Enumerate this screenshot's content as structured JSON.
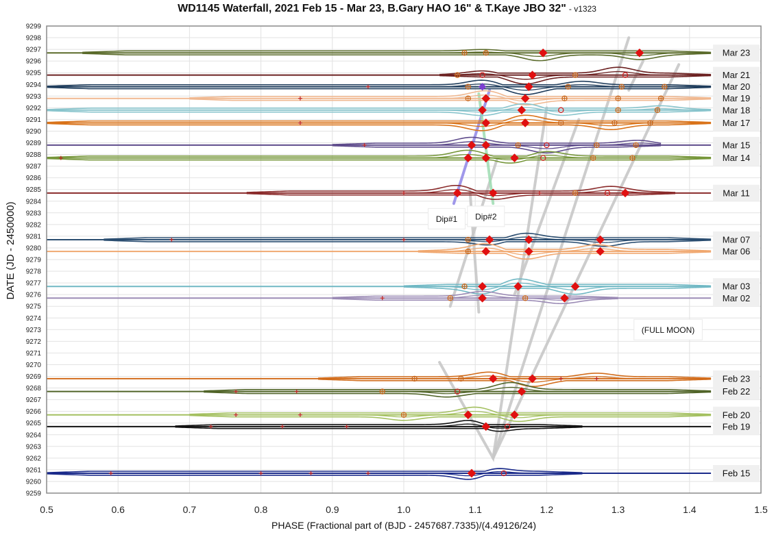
{
  "chart_data": {
    "type": "line",
    "title": "WD1145 Waterfall, 2021 Feb 15 - Mar 23, B.Gary HAO 16\" & T.Kaye JBO 32\"",
    "version": "- v1323",
    "xlabel": "PHASE (Fractional part of (BJD - 2457687.7335)/(4.49126/24)",
    "ylabel": "DATE (JD - 2450000)",
    "xlim": [
      0.5,
      1.5
    ],
    "ylim": [
      9259,
      9299
    ],
    "xticks": [
      "0.5",
      "0.6",
      "0.7",
      "0.8",
      "0.9",
      "1.0",
      "1.1",
      "1.2",
      "1.3",
      "1.4",
      "1.5"
    ],
    "yticks": [
      "9259",
      "9260",
      "9261",
      "9262",
      "9263",
      "9264",
      "9265",
      "9266",
      "9267",
      "9268",
      "9269",
      "9270",
      "9271",
      "9272",
      "9273",
      "9274",
      "9275",
      "9276",
      "9277",
      "9278",
      "9279",
      "9280",
      "9281",
      "9282",
      "9283",
      "9284",
      "9285",
      "9286",
      "9287",
      "9288",
      "9289",
      "9290",
      "9291",
      "9292",
      "9293",
      "9294",
      "9295",
      "9296",
      "9297",
      "9298",
      "9299"
    ],
    "grid": true,
    "series": [
      {
        "name": "Mar 23",
        "y": 9296.7,
        "color": "#5a6b2a",
        "xmin": 0.55,
        "xmax": 1.43,
        "dips": [
          [
            1.19,
            -0.5
          ],
          [
            1.33,
            -0.4
          ],
          [
            1.11,
            0.12
          ]
        ],
        "markers": [
          [
            1.195,
            "d"
          ],
          [
            1.33,
            "d"
          ],
          [
            1.085,
            "p"
          ],
          [
            1.115,
            "p"
          ]
        ]
      },
      {
        "name": "Mar 21",
        "y": 9294.8,
        "color": "#6b2020",
        "xmin": 1.05,
        "xmax": 1.43,
        "dips": [
          [
            1.17,
            -0.6
          ],
          [
            1.3,
            0.5
          ],
          [
            1.11,
            0.2
          ]
        ],
        "markers": [
          [
            1.18,
            "d"
          ],
          [
            1.11,
            "o"
          ],
          [
            1.24,
            "p"
          ],
          [
            1.31,
            "o"
          ],
          [
            1.075,
            "p"
          ]
        ]
      },
      {
        "name": "Mar 20",
        "y": 9293.8,
        "color": "#1f3d5c",
        "xmin": 0.5,
        "xmax": 1.43,
        "dips": [
          [
            1.11,
            0.4
          ],
          [
            1.17,
            -0.5
          ],
          [
            1.25,
            0.3
          ]
        ],
        "markers": [
          [
            1.175,
            "d"
          ],
          [
            1.11,
            "v"
          ],
          [
            1.23,
            "p"
          ],
          [
            1.305,
            "p"
          ],
          [
            1.365,
            "p"
          ],
          [
            1.09,
            "p"
          ],
          [
            0.95,
            "c"
          ]
        ]
      },
      {
        "name": "Mar 19",
        "y": 9292.8,
        "color": "#f0b890",
        "xmin": 0.7,
        "xmax": 1.43,
        "dips": [
          [
            1.115,
            0.5
          ],
          [
            1.17,
            -0.4
          ]
        ],
        "markers": [
          [
            1.115,
            "d"
          ],
          [
            1.17,
            "d"
          ],
          [
            1.09,
            "p"
          ],
          [
            1.225,
            "p"
          ],
          [
            1.3,
            "p"
          ],
          [
            1.36,
            "p"
          ],
          [
            0.855,
            "c"
          ]
        ]
      },
      {
        "name": "Mar 18",
        "y": 9291.8,
        "color": "#88c4cc",
        "xmin": 0.5,
        "xmax": 1.43,
        "dips": [
          [
            1.11,
            -0.3
          ],
          [
            1.17,
            0.4
          ],
          [
            1.22,
            -0.3
          ],
          [
            1.36,
            0.2
          ]
        ],
        "markers": [
          [
            1.11,
            "d"
          ],
          [
            1.165,
            "d"
          ],
          [
            1.22,
            "o"
          ],
          [
            1.3,
            "p"
          ],
          [
            1.355,
            "p"
          ]
        ]
      },
      {
        "name": "Mar 17",
        "y": 9290.7,
        "color": "#d9731a",
        "xmin": 0.5,
        "xmax": 1.43,
        "dips": [
          [
            1.11,
            -0.5
          ],
          [
            1.17,
            0.5
          ],
          [
            1.29,
            -0.4
          ]
        ],
        "markers": [
          [
            1.115,
            "d"
          ],
          [
            1.17,
            "d"
          ],
          [
            1.22,
            "p"
          ],
          [
            1.295,
            "p"
          ],
          [
            1.345,
            "p"
          ],
          [
            0.855,
            "c"
          ]
        ]
      },
      {
        "name": "Mar 15",
        "y": 9288.8,
        "color": "#5e4b8b",
        "xmin": 0.9,
        "xmax": 1.36,
        "dips": [
          [
            1.095,
            0.5
          ],
          [
            1.2,
            -0.5
          ],
          [
            1.33,
            0.3
          ]
        ],
        "markers": [
          [
            1.095,
            "d"
          ],
          [
            1.115,
            "d"
          ],
          [
            1.16,
            "p"
          ],
          [
            1.2,
            "o"
          ],
          [
            1.27,
            "p"
          ],
          [
            1.325,
            "p"
          ],
          [
            0.945,
            "c"
          ]
        ]
      },
      {
        "name": "Mar 14",
        "y": 9287.7,
        "color": "#76963a",
        "xmin": 0.5,
        "xmax": 1.43,
        "dips": [
          [
            1.09,
            0.5
          ],
          [
            1.15,
            -0.3
          ],
          [
            1.2,
            0.4
          ]
        ],
        "markers": [
          [
            1.09,
            "d"
          ],
          [
            1.115,
            "d"
          ],
          [
            1.155,
            "d"
          ],
          [
            1.195,
            "o"
          ],
          [
            1.265,
            "p"
          ],
          [
            1.32,
            "p"
          ],
          [
            0.52,
            "c"
          ]
        ]
      },
      {
        "name": "Mar 11",
        "y": 9284.7,
        "color": "#8a2a2a",
        "xmin": 0.78,
        "xmax": 1.38,
        "dips": [
          [
            1.075,
            0.5
          ],
          [
            1.125,
            -0.4
          ],
          [
            1.29,
            0.4
          ]
        ],
        "markers": [
          [
            1.075,
            "d"
          ],
          [
            1.125,
            "d"
          ],
          [
            1.31,
            "d"
          ],
          [
            1.285,
            "o"
          ],
          [
            1.24,
            "p"
          ],
          [
            1.19,
            "c"
          ],
          [
            1.0,
            "c"
          ]
        ]
      },
      {
        "name": "Mar 07",
        "y": 9280.7,
        "color": "#2a4d70",
        "xmin": 0.58,
        "xmax": 1.43,
        "dips": [
          [
            1.12,
            -0.3
          ],
          [
            1.17,
            0.4
          ],
          [
            1.28,
            -0.4
          ]
        ],
        "markers": [
          [
            1.12,
            "d"
          ],
          [
            1.175,
            "d"
          ],
          [
            1.275,
            "d"
          ],
          [
            1.09,
            "p"
          ],
          [
            1.0,
            "c"
          ],
          [
            0.675,
            "c"
          ]
        ]
      },
      {
        "name": "Mar 06",
        "y": 9279.7,
        "color": "#f0a870",
        "xmin": 1.02,
        "xmax": 1.43,
        "dips": [
          [
            1.115,
            0.5
          ],
          [
            1.17,
            -0.5
          ],
          [
            1.27,
            0.4
          ]
        ],
        "markers": [
          [
            1.115,
            "d"
          ],
          [
            1.175,
            "d"
          ],
          [
            1.275,
            "d"
          ],
          [
            1.09,
            "p"
          ]
        ]
      },
      {
        "name": "Mar 03",
        "y": 9276.7,
        "color": "#70b8c4",
        "xmin": 1.0,
        "xmax": 1.43,
        "dips": [
          [
            1.11,
            -0.5
          ],
          [
            1.16,
            0.5
          ],
          [
            1.24,
            -0.5
          ]
        ],
        "markers": [
          [
            1.11,
            "d"
          ],
          [
            1.16,
            "d"
          ],
          [
            1.24,
            "d"
          ],
          [
            1.085,
            "p"
          ]
        ]
      },
      {
        "name": "Mar 02",
        "y": 9275.7,
        "color": "#9b8bb5",
        "xmin": 0.9,
        "xmax": 1.3,
        "dips": [
          [
            1.11,
            0.4
          ],
          [
            1.22,
            -0.3
          ]
        ],
        "markers": [
          [
            1.11,
            "d"
          ],
          [
            1.225,
            "d"
          ],
          [
            1.17,
            "p"
          ],
          [
            1.065,
            "p"
          ],
          [
            0.97,
            "c"
          ]
        ]
      },
      {
        "name": "Feb 23",
        "y": 9268.8,
        "color": "#d26d1c",
        "xmin": 0.88,
        "xmax": 1.43,
        "dips": [
          [
            1.12,
            0.4
          ],
          [
            1.18,
            -0.5
          ],
          [
            1.27,
            0.3
          ]
        ],
        "markers": [
          [
            1.125,
            "d"
          ],
          [
            1.18,
            "d"
          ],
          [
            1.08,
            "p"
          ],
          [
            1.015,
            "p"
          ],
          [
            1.22,
            "c"
          ],
          [
            1.27,
            "c"
          ]
        ]
      },
      {
        "name": "Feb 22",
        "y": 9267.7,
        "color": "#506428",
        "xmin": 0.72,
        "xmax": 1.43,
        "dips": [
          [
            1.06,
            -0.3
          ],
          [
            1.15,
            0.6
          ]
        ],
        "markers": [
          [
            1.165,
            "d"
          ],
          [
            1.075,
            "o"
          ],
          [
            0.97,
            "p"
          ],
          [
            0.85,
            "c"
          ],
          [
            0.765,
            "c"
          ]
        ]
      },
      {
        "name": "Feb 20",
        "y": 9265.7,
        "color": "#a4c060",
        "xmin": 0.7,
        "xmax": 1.43,
        "dips": [
          [
            1.0,
            -0.3
          ],
          [
            1.1,
            0.5
          ],
          [
            1.16,
            -0.4
          ]
        ],
        "markers": [
          [
            1.09,
            "d"
          ],
          [
            1.155,
            "d"
          ],
          [
            1.0,
            "p"
          ],
          [
            0.855,
            "c"
          ],
          [
            0.765,
            "c"
          ]
        ]
      },
      {
        "name": "Feb 19",
        "y": 9264.7,
        "color": "#111111",
        "xmin": 0.68,
        "xmax": 1.25,
        "dips": [
          [
            1.1,
            0.6
          ],
          [
            1.12,
            -0.5
          ]
        ],
        "markers": [
          [
            1.115,
            "d"
          ],
          [
            1.145,
            "o"
          ],
          [
            0.92,
            "c"
          ],
          [
            0.83,
            "c"
          ],
          [
            0.73,
            "c"
          ]
        ]
      },
      {
        "name": "Feb 15",
        "y": 9260.7,
        "color": "#1a2a8a",
        "xmin": 0.5,
        "xmax": 1.25,
        "dips": [
          [
            1.1,
            -0.6
          ],
          [
            1.12,
            0.5
          ]
        ],
        "markers": [
          [
            1.095,
            "d"
          ],
          [
            1.14,
            "o"
          ],
          [
            0.95,
            "c"
          ],
          [
            0.87,
            "c"
          ],
          [
            0.8,
            "c"
          ],
          [
            0.59,
            "c"
          ]
        ]
      }
    ],
    "guides": [
      {
        "name": "Dip#1",
        "color": "#8f86e6",
        "pts": [
          [
            1.07,
            9283.8
          ],
          [
            1.12,
            9293.5
          ]
        ]
      },
      {
        "name": "Dip#2",
        "color": "#9edcb2",
        "pts": [
          [
            1.125,
            9283.8
          ],
          [
            1.105,
            9293.2
          ]
        ]
      }
    ],
    "drift_lines": [
      [
        [
          1.05,
          9270.2
        ],
        [
          1.125,
          9262.0
        ],
        [
          1.2,
          9292.0
        ]
      ],
      [
        [
          1.125,
          9262.0
        ],
        [
          1.315,
          9298.0
        ]
      ],
      [
        [
          1.125,
          9262.0
        ],
        [
          1.385,
          9295.7
        ]
      ],
      [
        [
          1.065,
          9275.0
        ],
        [
          1.13,
          9287.5
        ]
      ],
      [
        [
          1.155,
          9276.0
        ],
        [
          1.245,
          9291.0
        ]
      ],
      [
        [
          1.105,
          9274.5
        ],
        [
          1.0925,
          9285.0
        ]
      ],
      [
        [
          1.315,
          9293.5
        ],
        [
          1.335,
          9296.0
        ]
      ]
    ],
    "annotations": [
      {
        "text": "Dip#1",
        "x": 1.06,
        "y": 9282.5
      },
      {
        "text": "Dip#2",
        "x": 1.115,
        "y": 9282.7
      },
      {
        "text": "(FULL MOON)",
        "x": 1.37,
        "y": 9273.0
      }
    ]
  }
}
